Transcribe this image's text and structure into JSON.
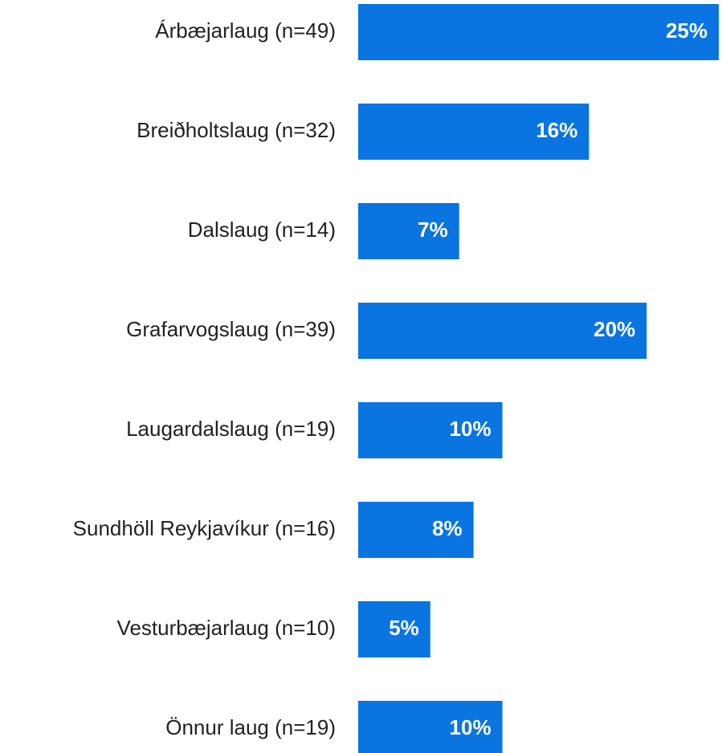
{
  "chart_data": {
    "type": "bar",
    "orientation": "horizontal",
    "categories": [
      "Árbæjarlaug (n=49)",
      "Breiðholtslaug (n=32)",
      "Dalslaug (n=14)",
      "Grafarvogslaug (n=39)",
      "Laugardalslaug (n=19)",
      "Sundhöll Reykjavíkur (n=16)",
      "Vesturbæjarlaug (n=10)",
      "Önnur laug (n=19)"
    ],
    "values": [
      25,
      16,
      7,
      20,
      10,
      8,
      5,
      10
    ],
    "value_labels": [
      "25%",
      "16%",
      "7%",
      "20%",
      "10%",
      "8%",
      "5%",
      "10%"
    ],
    "color": "#0a74e0"
  }
}
